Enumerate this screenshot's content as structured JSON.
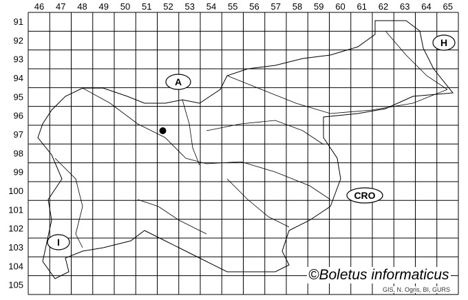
{
  "grid": {
    "columns": [
      "46",
      "47",
      "48",
      "49",
      "50",
      "51",
      "52",
      "53",
      "54",
      "55",
      "56",
      "57",
      "58",
      "59",
      "60",
      "61",
      "62",
      "63",
      "64",
      "65"
    ],
    "rows": [
      "91",
      "92",
      "93",
      "94",
      "95",
      "96",
      "97",
      "98",
      "99",
      "100",
      "101",
      "102",
      "103",
      "104",
      "105"
    ]
  },
  "countries": [
    {
      "id": "austria",
      "label": "A"
    },
    {
      "id": "hungary",
      "label": "H"
    },
    {
      "id": "croatia",
      "label": "CRO"
    },
    {
      "id": "italy",
      "label": "I"
    }
  ],
  "records": [
    {
      "column": "52",
      "row": "97"
    }
  ],
  "credit": "©Boletus informaticus",
  "source": "GIS, N. Ogris, BI, GURS",
  "colors": {
    "lines": "#000000",
    "background": "#ffffff",
    "record": "#000000"
  }
}
